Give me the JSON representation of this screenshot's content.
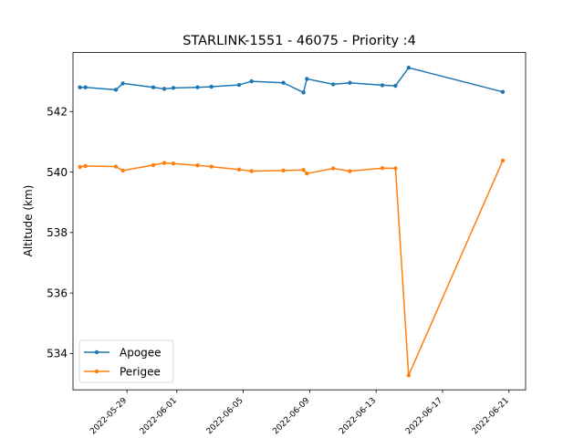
{
  "chart_data": {
    "type": "line",
    "title": "STARLINK-1551 - 46075 - Priority :4",
    "xlabel": "",
    "ylabel": "Altitude (km)",
    "x_range": [
      "2022-05-25T18:00",
      "2022-06-22T00:00"
    ],
    "ylim": [
      532.8,
      543.95
    ],
    "grid": false,
    "legend_position": "lower-left",
    "x_ticks": [
      {
        "date": "2022-05-29",
        "label": "2022-05-29"
      },
      {
        "date": "2022-06-01",
        "label": "2022-06-01"
      },
      {
        "date": "2022-06-05",
        "label": "2022-06-05"
      },
      {
        "date": "2022-06-09",
        "label": "2022-06-09"
      },
      {
        "date": "2022-06-13",
        "label": "2022-06-13"
      },
      {
        "date": "2022-06-17",
        "label": "2022-06-17"
      },
      {
        "date": "2022-06-21",
        "label": "2022-06-21"
      }
    ],
    "y_ticks": [
      {
        "value": 534,
        "label": "534"
      },
      {
        "value": 536,
        "label": "536"
      },
      {
        "value": 538,
        "label": "538"
      },
      {
        "value": 540,
        "label": "540"
      },
      {
        "value": 542,
        "label": "542"
      }
    ],
    "series": [
      {
        "name": "Apogee",
        "color": "#1f77b4",
        "points": [
          [
            "2022-05-26T04:00",
            542.8
          ],
          [
            "2022-05-26T12:00",
            542.8
          ],
          [
            "2022-05-28T08:00",
            542.72
          ],
          [
            "2022-05-28T18:00",
            542.93
          ],
          [
            "2022-05-30T14:00",
            542.8
          ],
          [
            "2022-05-31T06:00",
            542.75
          ],
          [
            "2022-05-31T19:00",
            542.78
          ],
          [
            "2022-06-02T06:00",
            542.8
          ],
          [
            "2022-06-03T02:00",
            542.82
          ],
          [
            "2022-06-04T18:00",
            542.88
          ],
          [
            "2022-06-05T12:00",
            543.0
          ],
          [
            "2022-06-07T10:00",
            542.95
          ],
          [
            "2022-06-08T15:00",
            542.63
          ],
          [
            "2022-06-08T20:00",
            543.08
          ],
          [
            "2022-06-10T10:00",
            542.9
          ],
          [
            "2022-06-11T10:00",
            542.95
          ],
          [
            "2022-06-13T09:00",
            542.87
          ],
          [
            "2022-06-14T04:00",
            542.85
          ],
          [
            "2022-06-14T23:00",
            543.45
          ],
          [
            "2022-06-20T15:00",
            542.65
          ]
        ]
      },
      {
        "name": "Perigee",
        "color": "#ff7f0e",
        "points": [
          [
            "2022-05-26T04:00",
            540.17
          ],
          [
            "2022-05-26T12:00",
            540.2
          ],
          [
            "2022-05-28T08:00",
            540.18
          ],
          [
            "2022-05-28T18:00",
            540.05
          ],
          [
            "2022-05-30T14:00",
            540.23
          ],
          [
            "2022-05-31T06:00",
            540.3
          ],
          [
            "2022-05-31T19:00",
            540.28
          ],
          [
            "2022-06-02T06:00",
            540.22
          ],
          [
            "2022-06-03T02:00",
            540.18
          ],
          [
            "2022-06-04T18:00",
            540.08
          ],
          [
            "2022-06-05T12:00",
            540.03
          ],
          [
            "2022-06-07T10:00",
            540.05
          ],
          [
            "2022-06-08T15:00",
            540.07
          ],
          [
            "2022-06-08T20:00",
            539.95
          ],
          [
            "2022-06-10T10:00",
            540.12
          ],
          [
            "2022-06-11T10:00",
            540.03
          ],
          [
            "2022-06-13T09:00",
            540.13
          ],
          [
            "2022-06-14T04:00",
            540.12
          ],
          [
            "2022-06-14T23:00",
            533.28
          ],
          [
            "2022-06-20T15:00",
            540.38
          ]
        ]
      }
    ]
  }
}
